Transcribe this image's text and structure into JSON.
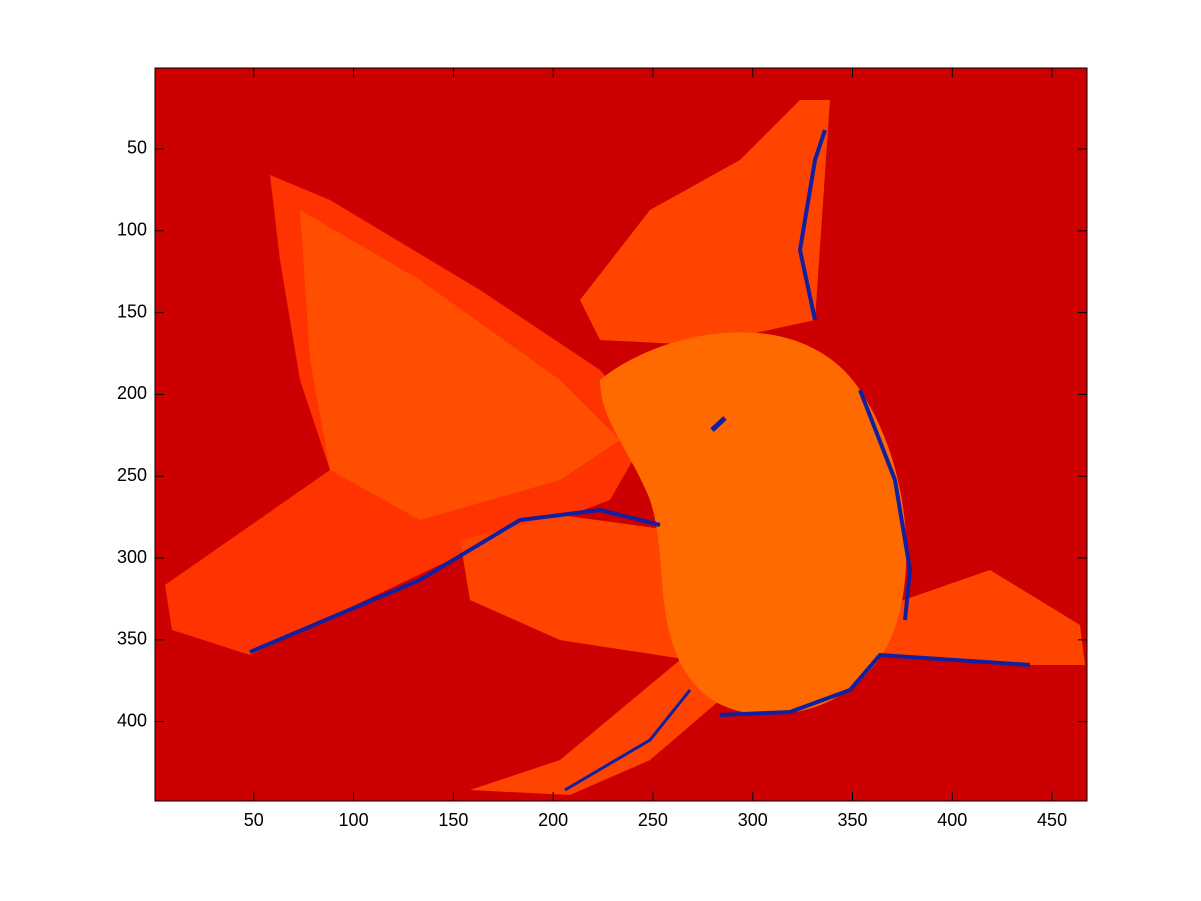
{
  "chart_data": {
    "type": "image",
    "xlim": [
      0.5,
      467.5
    ],
    "ylim": [
      0.5,
      448.5
    ],
    "y_reversed": true,
    "xticks": [
      50,
      100,
      150,
      200,
      250,
      300,
      350,
      400,
      450
    ],
    "yticks": [
      50,
      100,
      150,
      200,
      250,
      300,
      350,
      400
    ]
  }
}
